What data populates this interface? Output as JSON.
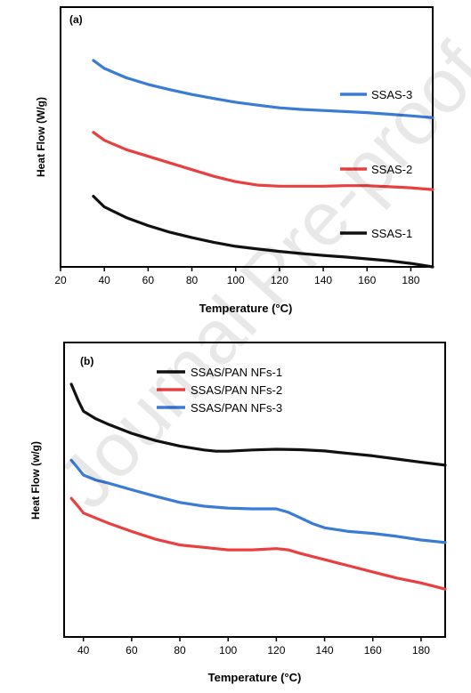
{
  "watermark": "Journal Pre-proof",
  "chart_data": [
    {
      "type": "line",
      "panel_label": "(a)",
      "xlabel": "Temperature (°C)",
      "ylabel": "Heat Flow (W/g)",
      "xlim": [
        20,
        190
      ],
      "xticks": [
        20,
        40,
        60,
        80,
        100,
        120,
        140,
        160,
        180
      ],
      "y_ticks_shown": false,
      "grid": false,
      "legend_placement": "inline-right",
      "series": [
        {
          "name": "SSAS-3",
          "color": "#3a7bd5",
          "x": [
            35,
            40,
            50,
            60,
            70,
            80,
            90,
            100,
            110,
            120,
            130,
            140,
            150,
            160,
            170,
            180,
            190
          ],
          "y": [
            10.5,
            10.2,
            9.85,
            9.6,
            9.4,
            9.22,
            9.07,
            8.93,
            8.82,
            8.72,
            8.66,
            8.62,
            8.58,
            8.54,
            8.48,
            8.42,
            8.35
          ]
        },
        {
          "name": "SSAS-2",
          "color": "#e84040",
          "x": [
            35,
            40,
            50,
            60,
            70,
            80,
            90,
            100,
            110,
            120,
            130,
            140,
            150,
            160,
            170,
            180,
            190
          ],
          "y": [
            7.8,
            7.5,
            7.15,
            6.9,
            6.65,
            6.4,
            6.15,
            5.95,
            5.82,
            5.78,
            5.78,
            5.78,
            5.8,
            5.8,
            5.76,
            5.72,
            5.65
          ]
        },
        {
          "name": "SSAS-1",
          "color": "#111111",
          "x": [
            35,
            40,
            50,
            60,
            70,
            80,
            90,
            100,
            110,
            120,
            130,
            140,
            150,
            160,
            170,
            180,
            190
          ],
          "y": [
            5.4,
            5.0,
            4.6,
            4.3,
            4.05,
            3.85,
            3.67,
            3.52,
            3.42,
            3.33,
            3.25,
            3.18,
            3.12,
            3.05,
            2.98,
            2.88,
            2.75
          ]
        }
      ]
    },
    {
      "type": "line",
      "panel_label": "(b)",
      "xlabel": "Temperature (°C)",
      "ylabel": "Heat Flow (w/g)",
      "xlim": [
        32,
        190
      ],
      "xticks": [
        40,
        60,
        80,
        100,
        120,
        140,
        160,
        180
      ],
      "y_ticks_shown": false,
      "grid": false,
      "legend_placement": "top-left",
      "series": [
        {
          "name": "SSAS/PAN NFs-1",
          "color": "#111111",
          "x": [
            35,
            38,
            40,
            45,
            50,
            60,
            70,
            80,
            90,
            95,
            100,
            110,
            120,
            130,
            140,
            150,
            160,
            170,
            180,
            190
          ],
          "y": [
            11.3,
            10.6,
            10.2,
            9.9,
            9.68,
            9.3,
            9.0,
            8.78,
            8.62,
            8.57,
            8.57,
            8.62,
            8.65,
            8.63,
            8.58,
            8.48,
            8.38,
            8.25,
            8.12,
            8.0
          ]
        },
        {
          "name": "SSAS/PAN NFs-2",
          "color": "#e84040",
          "x": [
            35,
            38,
            40,
            45,
            50,
            60,
            70,
            80,
            90,
            100,
            110,
            120,
            125,
            130,
            140,
            150,
            160,
            170,
            180,
            190
          ],
          "y": [
            6.65,
            6.3,
            6.05,
            5.85,
            5.65,
            5.3,
            4.98,
            4.75,
            4.65,
            4.55,
            4.55,
            4.6,
            4.55,
            4.4,
            4.15,
            3.9,
            3.65,
            3.4,
            3.2,
            2.95
          ]
        },
        {
          "name": "SSAS/PAN NFs-3",
          "color": "#3a7bd5",
          "x": [
            35,
            38,
            40,
            45,
            50,
            60,
            70,
            80,
            90,
            100,
            110,
            120,
            125,
            130,
            135,
            140,
            150,
            160,
            170,
            180,
            190
          ],
          "y": [
            8.2,
            7.85,
            7.6,
            7.4,
            7.28,
            7.0,
            6.73,
            6.48,
            6.33,
            6.25,
            6.22,
            6.22,
            6.08,
            5.85,
            5.62,
            5.45,
            5.3,
            5.22,
            5.1,
            4.95,
            4.85
          ]
        }
      ]
    }
  ]
}
